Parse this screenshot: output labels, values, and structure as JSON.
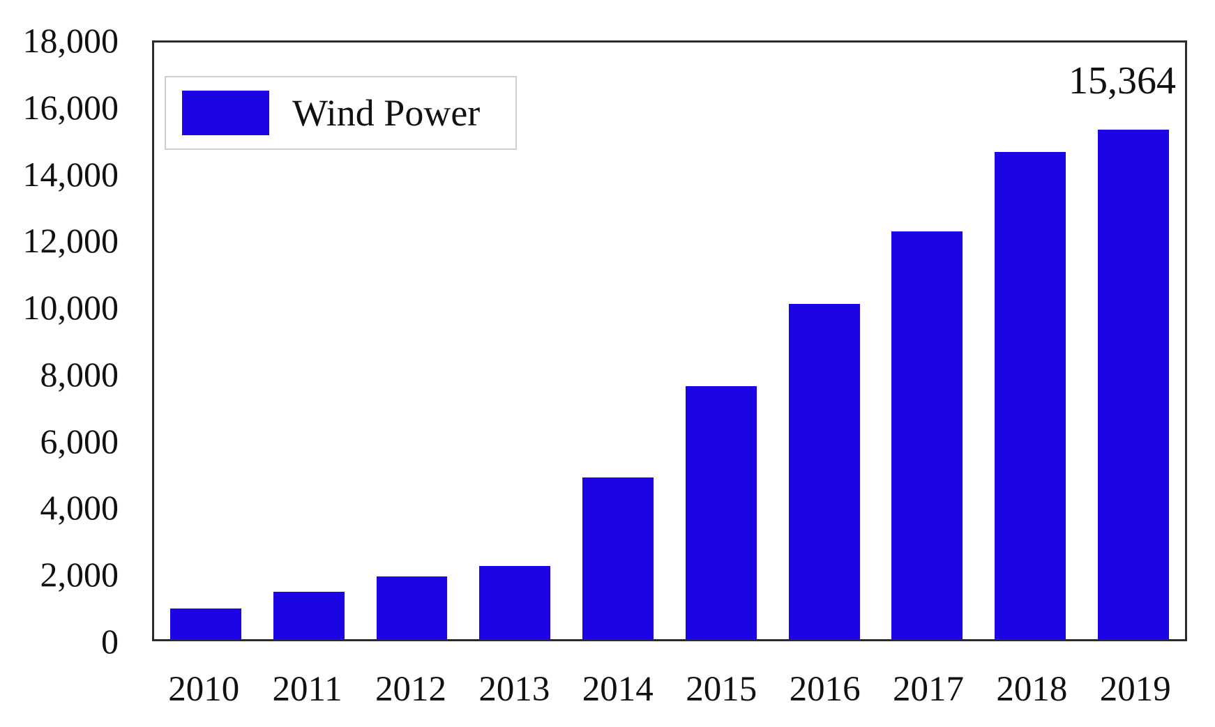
{
  "chart_data": {
    "type": "bar",
    "title": "",
    "xlabel": "",
    "ylabel": "",
    "categories": [
      "2010",
      "2011",
      "2012",
      "2013",
      "2014",
      "2015",
      "2016",
      "2017",
      "2018",
      "2019"
    ],
    "series": [
      {
        "name": "Wind Power",
        "values": [
          927,
          1426,
          1894,
          2202,
          4888,
          7633,
          10124,
          12294,
          14707,
          15364
        ]
      }
    ],
    "ylim": [
      0,
      18000
    ],
    "yticks": [
      0,
      2000,
      4000,
      6000,
      8000,
      10000,
      12000,
      14000,
      16000,
      18000
    ],
    "ytick_labels": [
      "0",
      "2,000",
      "4,000",
      "6,000",
      "8,000",
      "10,000",
      "12,000",
      "14,000",
      "16,000",
      "18,000"
    ],
    "grid": false,
    "legend_position": "upper-left",
    "annotation": {
      "text": "15,364",
      "value": 15364,
      "category": "2019"
    },
    "colors": {
      "bar": "#1b05e5",
      "spine": "#2b2b2b",
      "text": "#111111",
      "legend_border": "#cfcfcf",
      "background": "#ffffff"
    }
  }
}
